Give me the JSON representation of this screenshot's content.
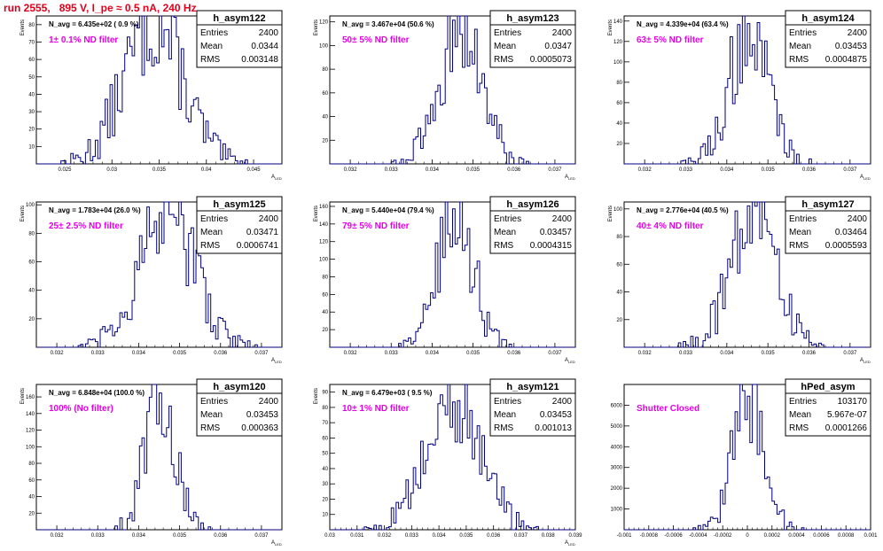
{
  "header": {
    "run_title": "run 2555,   895 V, I_pe ≈ 0.5 nA, 240 Hz"
  },
  "colors": {
    "title": "#e0001b",
    "filter_label": "#e600e6",
    "histogram": "#000080",
    "axis": "#000000"
  },
  "chart_data": [
    {
      "type": "histogram",
      "title": "N_avg = 6.435e+02 ( 0.9 %)",
      "filter_label": "1± 0.1% ND filter",
      "xlabel": "A_LED",
      "ylabel": "Events",
      "xlim": [
        0.022,
        0.048
      ],
      "ylim": [
        0,
        85
      ],
      "xticks": [
        "0.025",
        "0.03",
        "0.035",
        "0.04",
        "0.045"
      ],
      "xtick_values": [
        0.025,
        0.03,
        0.035,
        0.04,
        0.045
      ],
      "yticks": [
        "10",
        "20",
        "30",
        "40",
        "50",
        "60",
        "70",
        "80"
      ],
      "ytick_values": [
        10,
        20,
        30,
        40,
        50,
        60,
        70,
        80
      ],
      "stats": {
        "name": "h_asym122",
        "entries": "2400",
        "mean": "0.0344",
        "rms": "0.003148"
      },
      "dist": {
        "peak_x": 0.0344,
        "width": 0.003148,
        "peak_y": 80
      }
    },
    {
      "type": "histogram",
      "title": "N_avg = 3.467e+04 (50.6 %)",
      "filter_label": "50± 5% ND filter",
      "xlabel": "A_LED",
      "ylabel": "Events",
      "xlim": [
        0.0315,
        0.0375
      ],
      "ylim": [
        0,
        125
      ],
      "xticks": [
        "0.032",
        "0.033",
        "0.034",
        "0.035",
        "0.036",
        "0.037"
      ],
      "xtick_values": [
        0.032,
        0.033,
        0.034,
        0.035,
        0.036,
        0.037
      ],
      "yticks": [
        "20",
        "40",
        "60",
        "80",
        "100",
        "120"
      ],
      "ytick_values": [
        20,
        40,
        60,
        80,
        100,
        120
      ],
      "stats": {
        "name": "h_asym123",
        "entries": "2400",
        "mean": "0.0347",
        "rms": "0.0005073"
      },
      "dist": {
        "peak_x": 0.0347,
        "width": 0.0005073,
        "peak_y": 118
      }
    },
    {
      "type": "histogram",
      "title": "N_avg = 4.339e+04 (63.4 %)",
      "filter_label": "63± 5% ND filter",
      "xlabel": "A_LED",
      "ylabel": "Events",
      "xlim": [
        0.0315,
        0.0375
      ],
      "ylim": [
        0,
        145
      ],
      "xticks": [
        "0.032",
        "0.033",
        "0.034",
        "0.035",
        "0.036",
        "0.037"
      ],
      "xtick_values": [
        0.032,
        0.033,
        0.034,
        0.035,
        0.036,
        0.037
      ],
      "yticks": [
        "20",
        "40",
        "60",
        "80",
        "100",
        "120",
        "140"
      ],
      "ytick_values": [
        20,
        40,
        60,
        80,
        100,
        120,
        140
      ],
      "stats": {
        "name": "h_asym124",
        "entries": "2400",
        "mean": "0.03453",
        "rms": "0.0004875"
      },
      "dist": {
        "peak_x": 0.03453,
        "width": 0.0004875,
        "peak_y": 128
      }
    },
    {
      "type": "histogram",
      "title": "N_avg = 1.783e+04 (26.0 %)",
      "filter_label": "25± 2.5% ND filter",
      "xlabel": "A_LED",
      "ylabel": "Events",
      "xlim": [
        0.0315,
        0.0375
      ],
      "ylim": [
        0,
        102
      ],
      "xticks": [
        "0.032",
        "0.033",
        "0.034",
        "0.035",
        "0.036",
        "0.037"
      ],
      "xtick_values": [
        0.032,
        0.033,
        0.034,
        0.035,
        0.036,
        0.037
      ],
      "yticks": [
        "20",
        "40",
        "60",
        "80",
        "100"
      ],
      "ytick_values": [
        20,
        40,
        60,
        80,
        100
      ],
      "stats": {
        "name": "h_asym125",
        "entries": "2400",
        "mean": "0.03471",
        "rms": "0.0006741"
      },
      "dist": {
        "peak_x": 0.03471,
        "width": 0.0006741,
        "peak_y": 92
      }
    },
    {
      "type": "histogram",
      "title": "N_avg = 5.440e+04 (79.4 %)",
      "filter_label": "79± 5% ND filter",
      "xlabel": "A_LED",
      "ylabel": "Events",
      "xlim": [
        0.0315,
        0.0375
      ],
      "ylim": [
        0,
        165
      ],
      "xticks": [
        "0.032",
        "0.033",
        "0.034",
        "0.035",
        "0.036",
        "0.037"
      ],
      "xtick_values": [
        0.032,
        0.033,
        0.034,
        0.035,
        0.036,
        0.037
      ],
      "yticks": [
        "20",
        "40",
        "60",
        "80",
        "100",
        "120",
        "140",
        "160"
      ],
      "ytick_values": [
        20,
        40,
        60,
        80,
        100,
        120,
        140,
        160
      ],
      "stats": {
        "name": "h_asym126",
        "entries": "2400",
        "mean": "0.03457",
        "rms": "0.0004315"
      },
      "dist": {
        "peak_x": 0.03457,
        "width": 0.0004315,
        "peak_y": 150
      }
    },
    {
      "type": "histogram",
      "title": "N_avg = 2.776e+04 (40.5 %)",
      "filter_label": "40± 4% ND filter",
      "xlabel": "A_LED",
      "ylabel": "Events",
      "xlim": [
        0.0315,
        0.0375
      ],
      "ylim": [
        0,
        105
      ],
      "xticks": [
        "0.032",
        "0.033",
        "0.034",
        "0.035",
        "0.036",
        "0.037"
      ],
      "xtick_values": [
        0.032,
        0.033,
        0.034,
        0.035,
        0.036,
        0.037
      ],
      "yticks": [
        "20",
        "40",
        "60",
        "80",
        "100"
      ],
      "ytick_values": [
        20,
        40,
        60,
        80,
        100
      ],
      "stats": {
        "name": "h_asym127",
        "entries": "2400",
        "mean": "0.03464",
        "rms": "0.0005593"
      },
      "dist": {
        "peak_x": 0.03464,
        "width": 0.0005593,
        "peak_y": 100
      }
    },
    {
      "type": "histogram",
      "title": "N_avg = 6.848e+04 (100.0 %)",
      "filter_label": "100% (No filter)",
      "xlabel": "A_LED",
      "ylabel": "Events",
      "xlim": [
        0.0315,
        0.0375
      ],
      "ylim": [
        0,
        175
      ],
      "xticks": [
        "0.032",
        "0.033",
        "0.034",
        "0.035",
        "0.036",
        "0.037"
      ],
      "xtick_values": [
        0.032,
        0.033,
        0.034,
        0.035,
        0.036,
        0.037
      ],
      "yticks": [
        "20",
        "40",
        "60",
        "80",
        "100",
        "120",
        "140",
        "160"
      ],
      "ytick_values": [
        20,
        40,
        60,
        80,
        100,
        120,
        140,
        160
      ],
      "stats": {
        "name": "h_asym120",
        "entries": "2400",
        "mean": "0.03453",
        "rms": "0.000363"
      },
      "dist": {
        "peak_x": 0.03453,
        "width": 0.000363,
        "peak_y": 160
      }
    },
    {
      "type": "histogram",
      "title": "N_avg = 6.479e+03 ( 9.5 %)",
      "filter_label": "10± 1% ND filter",
      "xlabel": "A_LED",
      "ylabel": "Events",
      "xlim": [
        0.03,
        0.039
      ],
      "ylim": [
        0,
        95
      ],
      "xticks": [
        "0.03",
        "0.031",
        "0.032",
        "0.033",
        "0.034",
        "0.035",
        "0.036",
        "0.037",
        "0.038",
        "0.039"
      ],
      "xtick_values": [
        0.03,
        0.031,
        0.032,
        0.033,
        0.034,
        0.035,
        0.036,
        0.037,
        0.038,
        0.039
      ],
      "yticks": [
        "10",
        "20",
        "30",
        "40",
        "50",
        "60",
        "70",
        "80",
        "90"
      ],
      "ytick_values": [
        10,
        20,
        30,
        40,
        50,
        60,
        70,
        80,
        90
      ],
      "stats": {
        "name": "h_asym121",
        "entries": "2400",
        "mean": "0.03453",
        "rms": "0.001013"
      },
      "dist": {
        "peak_x": 0.03453,
        "width": 0.001013,
        "peak_y": 82
      }
    },
    {
      "type": "histogram",
      "title": "",
      "filter_label": "Shutter Closed",
      "xlabel": "",
      "ylabel": "",
      "xlim": [
        -0.001,
        0.001
      ],
      "ylim": [
        0,
        7000
      ],
      "xticks": [
        "-0.001",
        "-0.0008",
        "-0.0006",
        "-0.0004",
        "-0.0002",
        "0",
        "0.0002",
        "0.0004",
        "0.0006",
        "0.0008",
        "0.001"
      ],
      "xtick_values": [
        -0.001,
        -0.0008,
        -0.0006,
        -0.0004,
        -0.0002,
        0,
        0.0002,
        0.0004,
        0.0006,
        0.0008,
        0.001
      ],
      "yticks": [
        "1000",
        "2000",
        "3000",
        "4000",
        "5000",
        "6000"
      ],
      "ytick_values": [
        1000,
        2000,
        3000,
        4000,
        5000,
        6000
      ],
      "stats": {
        "name": "hPed_asym",
        "entries": "103170",
        "mean": "5.967e-07",
        "rms": "0.0001266"
      },
      "dist": {
        "peak_x": 6e-07,
        "width": 0.0001266,
        "peak_y": 6400
      }
    }
  ]
}
